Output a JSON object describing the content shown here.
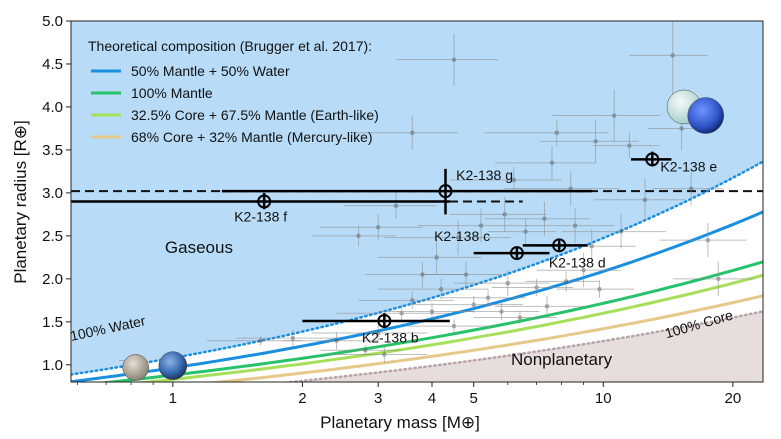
{
  "chart_data": {
    "type": "scatter",
    "x_scale": "log",
    "y_scale": "linear",
    "xlim": [
      0.58,
      23.5
    ],
    "ylim": [
      0.8,
      5.0
    ],
    "xlabel": "Planetary mass [M⊕]",
    "ylabel": "Planetary radius [R⊕]",
    "x_ticks": [
      {
        "value": 1,
        "label": "1"
      },
      {
        "value": 2,
        "label": "2"
      },
      {
        "value": 3,
        "label": "3"
      },
      {
        "value": 4,
        "label": "4"
      },
      {
        "value": 5,
        "label": "5"
      },
      {
        "value": 10,
        "label": "10"
      },
      {
        "value": 20,
        "label": "20"
      }
    ],
    "y_ticks": [
      {
        "value": 1.0,
        "label": "1.0"
      },
      {
        "value": 1.5,
        "label": "1.5"
      },
      {
        "value": 2.0,
        "label": "2.0"
      },
      {
        "value": 2.5,
        "label": "2.5"
      },
      {
        "value": 3.0,
        "label": "3.0"
      },
      {
        "value": 3.5,
        "label": "3.5"
      },
      {
        "value": 4.0,
        "label": "4.0"
      },
      {
        "value": 4.5,
        "label": "4.5"
      },
      {
        "value": 5.0,
        "label": "5.0"
      }
    ],
    "legend": {
      "title": "Theoretical composition (Brugger et al. 2017):",
      "placement": "top-left",
      "entries": [
        {
          "label": "50% Mantle + 50% Water",
          "color": "#1a8fe0"
        },
        {
          "label": "100% Mantle",
          "color": "#27c26a"
        },
        {
          "label": "32.5% Core + 67.5% Mantle (Earth-like)",
          "color": "#a6e05a"
        },
        {
          "label": "68% Core + 32% Mantle (Mercury-like)",
          "color": "#e6c98a"
        }
      ]
    },
    "regions": [
      {
        "label": "Gaseous",
        "color": "#b8dcf7",
        "anchor": {
          "x": 1.15,
          "y": 2.3
        }
      },
      {
        "label": "Nonplanetary",
        "color": "#e6dede",
        "anchor": {
          "x": 8.0,
          "y": 1.0
        }
      }
    ],
    "boundary_annotations": [
      {
        "label": "100% Water",
        "x": 0.71,
        "y": 1.37,
        "angle": -12
      },
      {
        "label": "100% Core",
        "x": 16.8,
        "y": 1.42,
        "angle": -16
      }
    ],
    "composition_curves": [
      {
        "name": "100% Water",
        "color": "#1a8fe0",
        "style": "dotted",
        "k": 1.08,
        "p": 0.36
      },
      {
        "name": "50% Mantle + 50% Water",
        "color": "#1a8fe0",
        "style": "solid",
        "k": 0.965,
        "p": 0.335
      },
      {
        "name": "100% Mantle",
        "color": "#27c26a",
        "style": "solid",
        "k": 0.88,
        "p": 0.29
      },
      {
        "name": "32.5% Core + 67.5% Mantle (Earth-like)",
        "color": "#a6e05a",
        "style": "solid",
        "k": 0.83,
        "p": 0.285
      },
      {
        "name": "68% Core + 32% Mantle (Mercury-like)",
        "color": "#e6c98a",
        "style": "solid",
        "k": 0.745,
        "p": 0.28
      },
      {
        "name": "100% Core",
        "color": "#b9a3a3",
        "style": "dotted",
        "k": 0.67,
        "p": 0.28
      }
    ],
    "radius_limits": [
      {
        "name": "K2-138 g",
        "y": 3.02,
        "style": "dashed",
        "x_from": 0.58,
        "x_to": 23.5
      },
      {
        "name": "K2-138 f",
        "y": 2.9,
        "style": "dashed",
        "x_from": 0.58,
        "x_to": 6.5
      }
    ],
    "series": [
      {
        "name": "K2-138 planets",
        "color": "#000000",
        "points": [
          {
            "label": "K2-138 b",
            "x": 3.1,
            "xlo": 2.0,
            "xhi": 4.4,
            "y": 1.51,
            "ylo": 1.43,
            "yhi": 1.6,
            "label_x": 3.2,
            "label_y": 1.26
          },
          {
            "label": "K2-138 c",
            "x": 6.3,
            "xlo": 5.0,
            "xhi": 7.5,
            "y": 2.3,
            "ylo": 2.25,
            "yhi": 2.36,
            "label_x": 4.7,
            "label_y": 2.44
          },
          {
            "label": "K2-138 d",
            "x": 7.9,
            "xlo": 6.5,
            "xhi": 9.2,
            "y": 2.39,
            "ylo": 2.34,
            "yhi": 2.44,
            "label_x": 8.7,
            "label_y": 2.13
          },
          {
            "label": "K2-138 e",
            "x": 13.0,
            "xlo": 11.6,
            "xhi": 14.4,
            "y": 3.39,
            "ylo": 3.31,
            "yhi": 3.48,
            "label_x": 15.8,
            "label_y": 3.25
          },
          {
            "label": "K2-138 f",
            "x": 1.63,
            "xlo": 0.58,
            "xhi": 4.4,
            "y": 2.9,
            "ylo": 2.81,
            "yhi": 3.0,
            "label_x": 1.6,
            "label_y": 2.67
          },
          {
            "label": "K2-138 g",
            "x": 4.3,
            "xlo": 1.3,
            "xhi": 9.4,
            "y": 3.02,
            "ylo": 2.75,
            "yhi": 3.28,
            "label_x": 5.3,
            "label_y": 3.15
          }
        ]
      },
      {
        "name": "Known planets",
        "color": "#555555",
        "points": [
          {
            "x": 0.8,
            "y": 1.05,
            "ex": 0.05,
            "ey": 0.02
          },
          {
            "x": 1.6,
            "y": 1.28,
            "ex": 0.4,
            "ey": 0.06
          },
          {
            "x": 1.9,
            "y": 1.31,
            "ex": 0.5,
            "ey": 0.1
          },
          {
            "x": 2.4,
            "y": 1.28,
            "ex": 0.6,
            "ey": 0.1
          },
          {
            "x": 2.8,
            "y": 1.17,
            "ex": 0.6,
            "ey": 0.06
          },
          {
            "x": 3.0,
            "y": 1.37,
            "ex": 0.9,
            "ey": 0.1
          },
          {
            "x": 3.1,
            "y": 1.12,
            "ex": 0.8,
            "ey": 0.1
          },
          {
            "x": 3.4,
            "y": 1.6,
            "ex": 1.0,
            "ey": 0.1
          },
          {
            "x": 3.6,
            "y": 1.75,
            "ex": 0.9,
            "ey": 0.1
          },
          {
            "x": 4.0,
            "y": 1.62,
            "ex": 1.0,
            "ey": 0.1
          },
          {
            "x": 4.2,
            "y": 1.88,
            "ex": 1.2,
            "ey": 0.12
          },
          {
            "x": 4.5,
            "y": 1.45,
            "ex": 1.0,
            "ey": 0.08
          },
          {
            "x": 4.8,
            "y": 2.05,
            "ex": 1.0,
            "ey": 0.15
          },
          {
            "x": 5.0,
            "y": 1.7,
            "ex": 1.5,
            "ey": 0.1
          },
          {
            "x": 5.4,
            "y": 1.78,
            "ex": 1.2,
            "ey": 0.1
          },
          {
            "x": 5.8,
            "y": 1.62,
            "ex": 1.3,
            "ey": 0.1
          },
          {
            "x": 6.0,
            "y": 1.95,
            "ex": 1.5,
            "ey": 0.15
          },
          {
            "x": 6.4,
            "y": 1.55,
            "ex": 1.4,
            "ey": 0.08
          },
          {
            "x": 7.0,
            "y": 1.9,
            "ex": 1.5,
            "ey": 0.1
          },
          {
            "x": 7.4,
            "y": 1.68,
            "ex": 1.8,
            "ey": 0.12
          },
          {
            "x": 8.2,
            "y": 1.97,
            "ex": 1.6,
            "ey": 0.12
          },
          {
            "x": 9.0,
            "y": 2.1,
            "ex": 2.0,
            "ey": 0.2
          },
          {
            "x": 9.8,
            "y": 1.88,
            "ex": 2.0,
            "ey": 0.1
          },
          {
            "x": 3.8,
            "y": 2.05,
            "ex": 1.0,
            "ey": 0.15
          },
          {
            "x": 4.1,
            "y": 2.25,
            "ex": 1.1,
            "ey": 0.2
          },
          {
            "x": 4.6,
            "y": 2.48,
            "ex": 1.5,
            "ey": 0.2
          },
          {
            "x": 5.2,
            "y": 2.62,
            "ex": 1.5,
            "ey": 0.2
          },
          {
            "x": 5.9,
            "y": 2.75,
            "ex": 1.5,
            "ey": 0.2
          },
          {
            "x": 6.6,
            "y": 2.55,
            "ex": 1.2,
            "ey": 0.15
          },
          {
            "x": 7.3,
            "y": 2.7,
            "ex": 2.0,
            "ey": 0.2
          },
          {
            "x": 8.6,
            "y": 2.62,
            "ex": 2.0,
            "ey": 0.2
          },
          {
            "x": 9.4,
            "y": 2.38,
            "ex": 2.5,
            "ey": 0.2
          },
          {
            "x": 11.0,
            "y": 2.55,
            "ex": 3.0,
            "ey": 0.2
          },
          {
            "x": 12.5,
            "y": 2.92,
            "ex": 3.0,
            "ey": 0.25
          },
          {
            "x": 6.2,
            "y": 3.15,
            "ex": 1.8,
            "ey": 0.15
          },
          {
            "x": 7.6,
            "y": 3.35,
            "ex": 2.0,
            "ey": 0.2
          },
          {
            "x": 8.4,
            "y": 3.05,
            "ex": 2.5,
            "ey": 0.2
          },
          {
            "x": 9.6,
            "y": 3.6,
            "ex": 2.5,
            "ey": 0.25
          },
          {
            "x": 11.5,
            "y": 3.55,
            "ex": 2.0,
            "ey": 0.15
          },
          {
            "x": 7.8,
            "y": 3.7,
            "ex": 2.5,
            "ey": 0.15
          },
          {
            "x": 10.6,
            "y": 3.9,
            "ex": 3.0,
            "ey": 0.3
          },
          {
            "x": 3.6,
            "y": 3.7,
            "ex": 1.0,
            "ey": 0.2
          },
          {
            "x": 4.5,
            "y": 4.55,
            "ex": 1.2,
            "ey": 0.3
          },
          {
            "x": 14.5,
            "y": 4.6,
            "ex": 3.0,
            "ey": 0.5
          },
          {
            "x": 15.2,
            "y": 3.75,
            "ex": 2.5,
            "ey": 0.25
          },
          {
            "x": 16.0,
            "y": 3.05,
            "ex": 3.0,
            "ey": 0.2
          },
          {
            "x": 17.5,
            "y": 2.45,
            "ex": 4.0,
            "ey": 0.2
          },
          {
            "x": 18.5,
            "y": 2.0,
            "ex": 4.0,
            "ey": 0.2
          },
          {
            "x": 3.0,
            "y": 2.6,
            "ex": 0.8,
            "ey": 0.15
          },
          {
            "x": 2.7,
            "y": 2.5,
            "ex": 0.6,
            "ey": 0.12
          },
          {
            "x": 3.3,
            "y": 2.85,
            "ex": 0.8,
            "ey": 0.15
          }
        ]
      }
    ],
    "planet_icons": [
      {
        "name": "Mercury",
        "x": 0.82,
        "y": 0.97,
        "fill": "#b9ada0"
      },
      {
        "name": "Earth",
        "x": 1.0,
        "y": 0.99,
        "fill": "#3c6fb5"
      },
      {
        "name": "Uranus",
        "x": 15.4,
        "y": 4.0,
        "fill": "#d6ebe8"
      },
      {
        "name": "Neptune",
        "x": 17.3,
        "y": 3.9,
        "fill": "#2f56c9"
      }
    ]
  }
}
